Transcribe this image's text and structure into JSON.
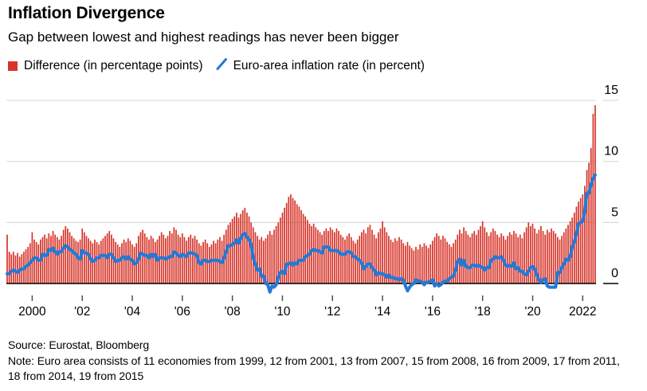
{
  "header": {
    "title": "Inflation Divergence",
    "subtitle": "Gap between lowest and highest readings has never been bigger"
  },
  "legend": {
    "items": [
      {
        "label": "Difference (in percentage points)",
        "swatch": "red-square"
      },
      {
        "label": "Euro-area inflation rate (in percent)",
        "swatch": "blue-slash"
      }
    ]
  },
  "footer": {
    "source": "Source: Eurostat, Bloomberg",
    "note": "Note: Euro area consists of 11 economies from 1999, 12 from 2001, 13 from 2007, 15 from 2008, 16 from 2009, 17 from 2011, 18 from 2014, 19 from 2015"
  },
  "colors": {
    "bar_red": "#d63429",
    "line_blue": "#2379d8",
    "gridline_gray": "#d9d9d9",
    "axis_black": "#000000",
    "background": "#ffffff"
  },
  "chart_data": {
    "type": "bar",
    "subtype": "bar+line combo, monthly",
    "x_start": "1999-01",
    "x_end": "2022-07",
    "frequency": "monthly",
    "ylim": [
      -1,
      15
    ],
    "y_ticks": [
      0,
      5,
      10,
      15
    ],
    "grid": "horizontal gridlines at 5,10,15; black baseline at 0; y labels on right",
    "legend_position": "top-left above plot",
    "x_ticks": [
      {
        "label": "2000",
        "year": 2000
      },
      {
        "label": "'02",
        "year": 2002
      },
      {
        "label": "'04",
        "year": 2004
      },
      {
        "label": "'06",
        "year": 2006
      },
      {
        "label": "'08",
        "year": 2008
      },
      {
        "label": "'10",
        "year": 2010
      },
      {
        "label": "'12",
        "year": 2012
      },
      {
        "label": "'14",
        "year": 2014
      },
      {
        "label": "'16",
        "year": 2016
      },
      {
        "label": "'18",
        "year": 2018
      },
      {
        "label": "'20",
        "year": 2020
      },
      {
        "label": "2022",
        "year": 2022
      }
    ],
    "series": [
      {
        "name": "Difference (in percentage points)",
        "type": "bar",
        "color": "#d63429",
        "values": [
          4.0,
          2.6,
          2.4,
          2.6,
          2.3,
          2.5,
          2.2,
          2.4,
          2.6,
          2.8,
          3.0,
          3.3,
          4.2,
          3.6,
          3.4,
          3.2,
          3.6,
          3.8,
          4.0,
          3.7,
          4.1,
          3.9,
          4.3,
          4.0,
          3.8,
          3.6,
          3.9,
          4.4,
          4.7,
          4.5,
          4.2,
          3.9,
          3.7,
          3.5,
          3.4,
          3.6,
          4.5,
          4.2,
          3.9,
          3.7,
          3.5,
          3.3,
          3.6,
          3.4,
          3.2,
          3.5,
          3.7,
          3.9,
          4.1,
          4.3,
          4.0,
          3.7,
          3.4,
          3.2,
          3.0,
          3.3,
          3.6,
          3.4,
          3.7,
          3.5,
          3.2,
          3.0,
          3.3,
          3.9,
          4.2,
          4.4,
          4.1,
          3.8,
          3.6,
          3.9,
          3.7,
          3.4,
          3.6,
          3.9,
          4.2,
          4.0,
          3.7,
          3.9,
          4.3,
          4.1,
          4.6,
          4.4,
          4.0,
          3.8,
          4.1,
          3.8,
          3.5,
          3.8,
          4.0,
          3.7,
          3.9,
          3.6,
          3.3,
          3.1,
          3.4,
          3.6,
          3.3,
          3.0,
          3.2,
          3.5,
          3.3,
          3.6,
          3.8,
          3.5,
          4.0,
          4.4,
          4.8,
          5.0,
          5.3,
          5.5,
          5.8,
          5.4,
          5.7,
          6.0,
          6.2,
          5.8,
          5.5,
          5.0,
          4.6,
          4.2,
          3.9,
          3.6,
          3.8,
          3.5,
          3.7,
          4.0,
          4.3,
          4.0,
          4.4,
          4.7,
          5.0,
          5.4,
          5.8,
          6.2,
          6.6,
          7.1,
          7.3,
          7.0,
          6.8,
          6.5,
          6.3,
          6.0,
          5.7,
          5.5,
          5.2,
          4.9,
          4.7,
          4.9,
          4.6,
          4.4,
          4.2,
          4.0,
          4.3,
          4.5,
          4.3,
          4.6,
          4.4,
          4.2,
          4.5,
          4.3,
          4.0,
          3.8,
          3.6,
          3.9,
          4.1,
          3.8,
          3.5,
          3.3,
          3.6,
          3.9,
          4.2,
          4.4,
          4.1,
          4.6,
          4.8,
          4.4,
          4.0,
          3.7,
          4.2,
          4.5,
          5.1,
          4.6,
          4.2,
          3.9,
          3.6,
          3.4,
          3.7,
          3.5,
          3.8,
          3.6,
          3.3,
          3.1,
          3.4,
          3.1,
          2.9,
          2.7,
          3.0,
          2.8,
          3.2,
          3.0,
          3.3,
          3.1,
          2.9,
          3.2,
          3.5,
          3.8,
          4.1,
          3.9,
          3.6,
          3.9,
          3.7,
          3.4,
          3.2,
          3.0,
          3.3,
          3.6,
          4.0,
          4.4,
          4.1,
          4.6,
          4.3,
          4.0,
          3.8,
          4.1,
          4.3,
          4.0,
          4.4,
          4.7,
          5.1,
          4.6,
          4.2,
          3.9,
          4.2,
          4.5,
          4.3,
          4.0,
          3.8,
          4.1,
          3.9,
          3.6,
          3.9,
          4.2,
          4.0,
          4.3,
          4.1,
          3.8,
          4.0,
          3.7,
          4.2,
          4.6,
          5.0,
          4.7,
          4.9,
          4.5,
          4.1,
          4.4,
          4.7,
          4.3,
          4.0,
          4.4,
          4.2,
          4.5,
          4.3,
          4.1,
          3.8,
          3.6,
          3.9,
          4.2,
          4.5,
          4.8,
          5.1,
          5.4,
          5.8,
          6.3,
          6.7,
          7.0,
          7.3,
          8.0,
          9.3,
          9.9,
          11.1,
          13.9,
          14.6
        ]
      },
      {
        "name": "Euro-area inflation rate (in percent)",
        "type": "line",
        "color": "#2379d8",
        "values": [
          0.8,
          0.8,
          1.0,
          1.1,
          1.0,
          0.9,
          1.1,
          1.2,
          1.2,
          1.4,
          1.5,
          1.7,
          1.9,
          2.1,
          2.1,
          1.9,
          1.9,
          2.4,
          2.3,
          2.3,
          2.8,
          2.7,
          2.9,
          2.6,
          2.4,
          2.6,
          2.6,
          2.9,
          3.1,
          3.0,
          2.8,
          2.7,
          2.5,
          2.4,
          2.1,
          2.0,
          2.7,
          2.5,
          2.5,
          2.4,
          2.0,
          1.8,
          1.9,
          2.1,
          2.1,
          2.3,
          2.3,
          2.3,
          2.1,
          2.4,
          2.4,
          2.1,
          1.8,
          1.9,
          1.9,
          2.1,
          2.2,
          2.0,
          2.2,
          2.0,
          1.9,
          1.6,
          1.7,
          2.0,
          2.5,
          2.4,
          2.3,
          2.3,
          2.1,
          2.4,
          2.2,
          2.4,
          1.9,
          2.1,
          2.1,
          2.1,
          2.0,
          2.1,
          2.2,
          2.2,
          2.6,
          2.5,
          2.3,
          2.2,
          2.4,
          2.3,
          2.2,
          2.5,
          2.5,
          2.5,
          2.4,
          2.3,
          1.7,
          1.6,
          1.9,
          1.9,
          1.8,
          1.8,
          1.9,
          1.9,
          1.9,
          1.9,
          1.8,
          1.7,
          2.1,
          2.6,
          3.1,
          3.1,
          3.2,
          3.3,
          3.6,
          3.3,
          3.7,
          4.0,
          4.1,
          3.8,
          3.6,
          3.2,
          2.1,
          1.6,
          1.1,
          1.2,
          0.6,
          0.6,
          0.0,
          -0.1,
          -0.7,
          -0.2,
          -0.3,
          -0.1,
          0.5,
          0.9,
          1.0,
          0.8,
          1.6,
          1.6,
          1.7,
          1.5,
          1.7,
          1.6,
          1.9,
          1.9,
          1.9,
          2.2,
          2.3,
          2.4,
          2.7,
          2.8,
          2.7,
          2.7,
          2.6,
          2.5,
          3.0,
          3.0,
          3.0,
          2.7,
          2.7,
          2.7,
          2.7,
          2.6,
          2.4,
          2.4,
          2.4,
          2.6,
          2.6,
          2.5,
          2.2,
          2.2,
          2.0,
          1.9,
          1.7,
          1.2,
          1.4,
          1.6,
          1.6,
          1.3,
          1.1,
          0.7,
          0.9,
          0.8,
          0.8,
          0.7,
          0.5,
          0.7,
          0.5,
          0.5,
          0.4,
          0.4,
          0.3,
          0.4,
          0.3,
          -0.2,
          -0.6,
          -0.3,
          -0.1,
          0.0,
          0.3,
          0.2,
          0.2,
          0.1,
          -0.1,
          0.1,
          0.1,
          0.2,
          0.3,
          -0.2,
          0.0,
          -0.2,
          -0.1,
          0.1,
          0.2,
          0.2,
          0.4,
          0.5,
          0.6,
          1.1,
          1.8,
          2.0,
          1.5,
          1.9,
          1.4,
          1.3,
          1.3,
          1.5,
          1.5,
          1.4,
          1.5,
          1.4,
          1.3,
          1.1,
          1.3,
          1.3,
          1.9,
          2.0,
          2.2,
          2.1,
          2.1,
          2.2,
          1.9,
          1.5,
          1.4,
          1.5,
          1.4,
          1.7,
          1.2,
          1.3,
          1.0,
          1.0,
          0.8,
          0.7,
          1.0,
          1.3,
          1.4,
          1.2,
          0.7,
          0.3,
          0.1,
          0.3,
          0.4,
          -0.2,
          -0.3,
          -0.3,
          -0.3,
          -0.3,
          0.9,
          0.9,
          1.3,
          1.6,
          2.0,
          1.9,
          2.2,
          3.0,
          3.4,
          4.1,
          4.9,
          5.0,
          5.1,
          5.9,
          7.4,
          7.4,
          8.1,
          8.6,
          8.9
        ]
      }
    ]
  }
}
